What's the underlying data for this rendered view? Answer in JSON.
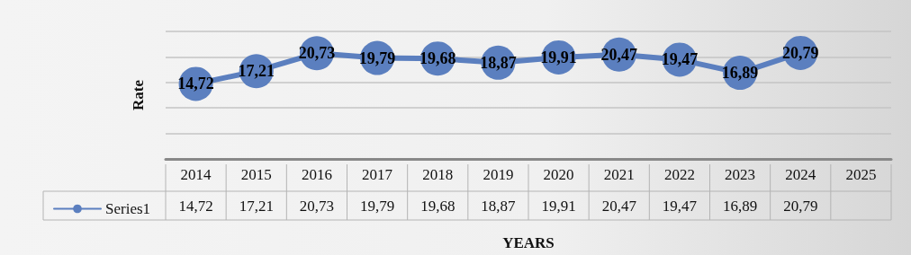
{
  "chart_data": {
    "type": "line",
    "xlabel": "YEARS",
    "ylabel": "Rate",
    "categories": [
      "2014",
      "2015",
      "2016",
      "2017",
      "2018",
      "2019",
      "2020",
      "2021",
      "2022",
      "2023",
      "2024",
      "2025"
    ],
    "series": [
      {
        "name": "Series1",
        "color": "#5b7fbf",
        "values": [
          14.72,
          17.21,
          20.73,
          19.79,
          19.68,
          18.87,
          19.91,
          20.47,
          19.47,
          16.89,
          20.79,
          null
        ],
        "value_labels": [
          "14,72",
          "17,21",
          "20,73",
          "19,79",
          "19,68",
          "18,87",
          "19,91",
          "20,47",
          "19,47",
          "16,89",
          "20,79",
          null
        ]
      }
    ],
    "ylim": [
      0,
      25
    ],
    "yticks": [
      {
        "value": 0,
        "label": null
      },
      {
        "value": 5,
        "label": null
      },
      {
        "value": 10,
        "label": null
      },
      {
        "value": 15,
        "label": null
      },
      {
        "value": 20,
        "label": null
      },
      {
        "value": 25,
        "label": null
      }
    ],
    "tick_labels": "x",
    "grid": "y",
    "legend": "bottom left",
    "marker": "circle",
    "line_style": "solid"
  }
}
